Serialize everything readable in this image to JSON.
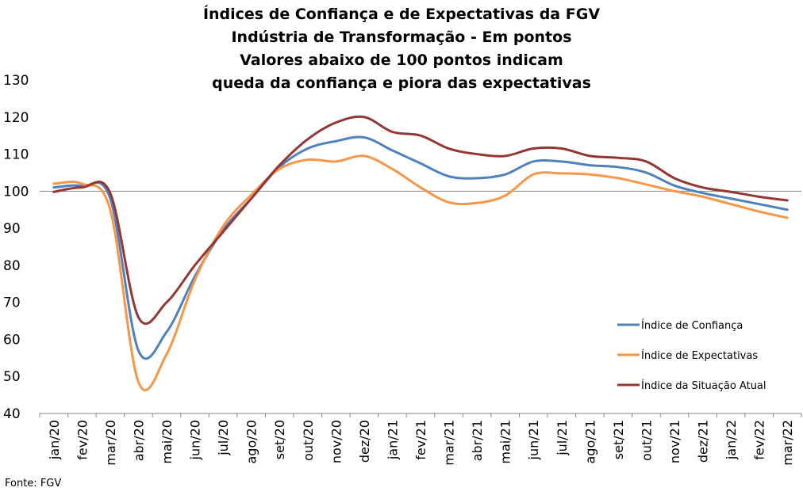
{
  "title_lines": [
    "Índices de Confiança e de Expectativas da FGV",
    "Indústria de Transformação - Em pontos",
    "Valores abaixo de 100 pontos indicam",
    "queda da confiança e piora das expectativas"
  ],
  "source": "Fonte: FGV",
  "chart_data": {
    "type": "line",
    "title": "Índices de Confiança e de Expectativas da FGV Indústria de Transformação - Em pontos",
    "subtitle": "Valores abaixo de 100 pontos indicam queda da confiança e piora das expectativas",
    "xlabel": "",
    "ylabel": "",
    "ylim": [
      40,
      130
    ],
    "yticks": [
      40,
      50,
      60,
      70,
      80,
      90,
      100,
      110,
      120,
      130
    ],
    "reference_line": 100,
    "grid": false,
    "legend_position": "right",
    "categories": [
      "jan/20",
      "fev/20",
      "mar/20",
      "abr/20",
      "mai/20",
      "jun/20",
      "jul/20",
      "ago/20",
      "set/20",
      "out/20",
      "nov/20",
      "dez/20",
      "jan/21",
      "fev/21",
      "mar/21",
      "abr/21",
      "mai/21",
      "jun/21",
      "jul/21",
      "ago/21",
      "set/21",
      "out/21",
      "nov/21",
      "dez/21",
      "jan/22",
      "fev/22",
      "mar/22"
    ],
    "series": [
      {
        "name": "Índice de Confiança",
        "color": "#4F81BD",
        "values": [
          101.0,
          101.4,
          98.0,
          57.0,
          62.0,
          77.0,
          89.5,
          98.0,
          106.5,
          111.5,
          113.5,
          114.5,
          111.0,
          107.5,
          104.0,
          103.5,
          104.5,
          108.0,
          108.0,
          107.0,
          106.5,
          105.0,
          101.5,
          99.5,
          98.0,
          96.5,
          95.0
        ]
      },
      {
        "name": "Índice de Expectativas",
        "color": "#F79646",
        "values": [
          102.0,
          102.0,
          95.0,
          48.5,
          56.0,
          76.0,
          90.5,
          99.0,
          106.0,
          108.5,
          108.0,
          109.5,
          106.0,
          101.0,
          97.0,
          96.8,
          98.8,
          104.5,
          104.8,
          104.5,
          103.5,
          101.8,
          100.0,
          98.5,
          96.5,
          94.5,
          92.8
        ]
      },
      {
        "name": "Índice da Situação Atual",
        "color": "#943634",
        "values": [
          99.8,
          101.0,
          99.5,
          66.0,
          70.0,
          80.0,
          89.0,
          98.0,
          107.0,
          114.0,
          118.5,
          120.0,
          116.0,
          115.0,
          111.5,
          110.0,
          109.5,
          111.5,
          111.5,
          109.5,
          109.0,
          108.0,
          103.5,
          101.0,
          99.8,
          98.5,
          97.5
        ]
      }
    ]
  }
}
